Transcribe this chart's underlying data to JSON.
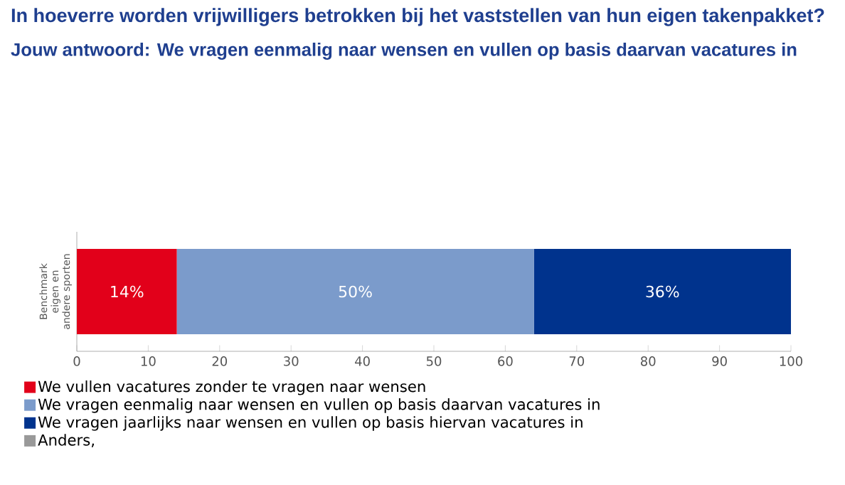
{
  "chart_data": {
    "type": "bar",
    "orientation": "horizontal",
    "stacked": true,
    "title": "In hoeverre worden vrijwilligers betrokken bij het vaststellen van hun eigen takenpakket?",
    "subtitle": "Jouw antwoord: We vragen eenmalig naar wensen en vullen op basis daarvan vacatures in",
    "categories": [
      "Benchmark eigen en andere sporten"
    ],
    "series": [
      {
        "name": "We vullen vacatures zonder te vragen naar wensen",
        "color": "#e2001a",
        "values": [
          14
        ],
        "value_labels": [
          "14%"
        ]
      },
      {
        "name": "We vragen eenmalig naar wensen en vullen op basis daarvan vacatures in",
        "color": "#7b9bcb",
        "values": [
          50
        ],
        "value_labels": [
          "50%"
        ]
      },
      {
        "name": "We vragen jaarlijks naar wensen en vullen op basis hiervan vacatures in",
        "color": "#00338d",
        "values": [
          36
        ],
        "value_labels": [
          "36%"
        ]
      },
      {
        "name": "Anders,",
        "color": "#999999",
        "values": [
          0
        ],
        "value_labels": [
          null
        ]
      }
    ],
    "xlim": [
      0,
      100
    ],
    "xticks": [
      0,
      10,
      20,
      30,
      40,
      50,
      60,
      70,
      80,
      90,
      100
    ],
    "grid": false,
    "legend": "bottom"
  }
}
